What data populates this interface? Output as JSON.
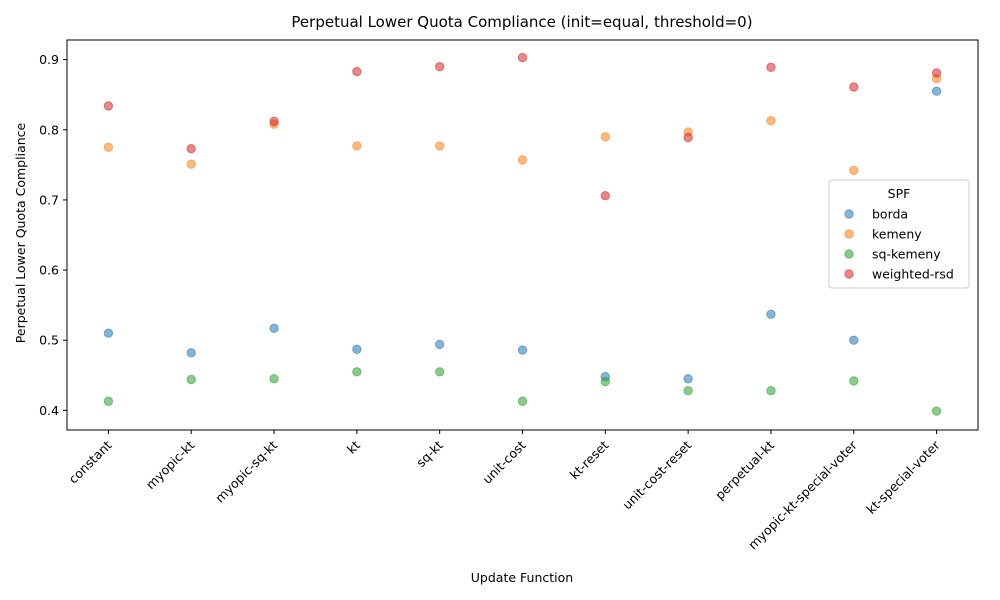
{
  "chart_data": {
    "type": "scatter",
    "title": "Perpetual Lower Quota Compliance (init=equal, threshold=0)",
    "xlabel": "Update Function",
    "ylabel": "Perpetual Lower Quota Compliance",
    "categories": [
      "constant",
      "myopic-kt",
      "myopic-sq-kt",
      "kt",
      "sq-kt",
      "unit-cost",
      "kt-reset",
      "unit-cost-reset",
      "perpetual-kt",
      "myopic-kt-special-voter",
      "kt-special-voter"
    ],
    "ylim": [
      0.372,
      0.928
    ],
    "yticks": [
      "0.4",
      "0.5",
      "0.6",
      "0.7",
      "0.8",
      "0.9"
    ],
    "legend": {
      "title": "SPF",
      "position": "right"
    },
    "series": [
      {
        "name": "borda",
        "color": "#1f77b4",
        "values": [
          0.51,
          0.482,
          0.517,
          0.487,
          0.494,
          0.486,
          0.448,
          0.445,
          0.537,
          0.5,
          0.855
        ]
      },
      {
        "name": "kemeny",
        "color": "#ff7f0e",
        "values": [
          0.775,
          0.751,
          0.808,
          0.777,
          0.777,
          0.757,
          0.79,
          0.797,
          0.813,
          0.742,
          0.873
        ]
      },
      {
        "name": "sq-kemeny",
        "color": "#2ca02c",
        "values": [
          0.413,
          0.444,
          0.445,
          0.455,
          0.455,
          0.413,
          0.441,
          0.428,
          0.428,
          0.442,
          0.399
        ]
      },
      {
        "name": "weighted-rsd",
        "color": "#d62728",
        "values": [
          0.834,
          0.773,
          0.812,
          0.883,
          0.89,
          0.903,
          0.706,
          0.789,
          0.889,
          0.861,
          0.881
        ]
      }
    ]
  }
}
